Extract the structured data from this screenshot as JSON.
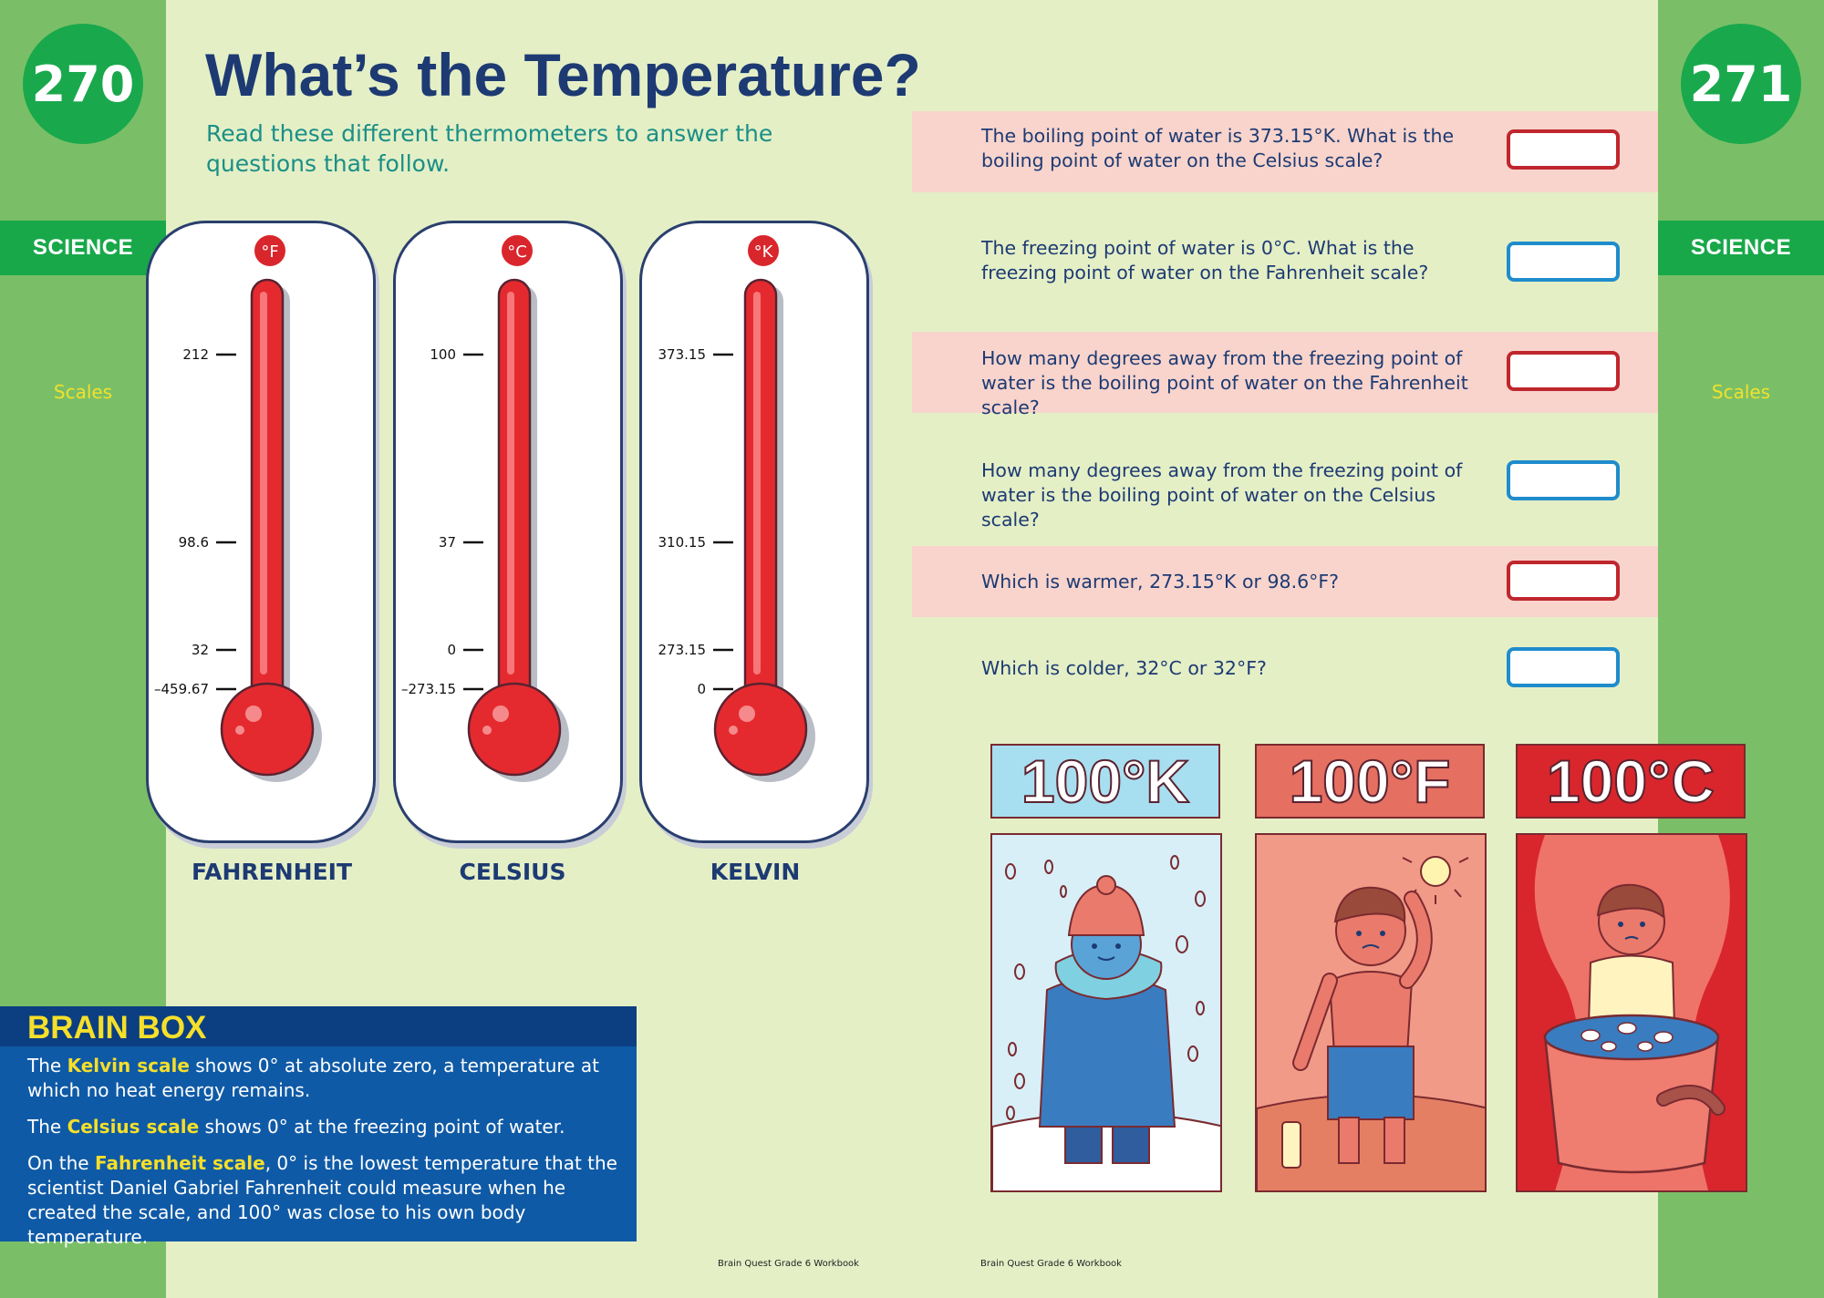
{
  "pages": {
    "left": {
      "number": "270",
      "subject": "SCIENCE",
      "topic": "Scales"
    },
    "right": {
      "number": "271",
      "subject": "SCIENCE",
      "topic": "Scales"
    }
  },
  "header": {
    "title": "What’s the Temperature?",
    "subtitle": "Read these different thermometers to answer the questions that follow."
  },
  "thermometers": [
    {
      "unit": "°F",
      "name": "FAHRENHEIT",
      "ticks": [
        "212",
        "98.6",
        "32",
        "–459.67"
      ]
    },
    {
      "unit": "°C",
      "name": "CELSIUS",
      "ticks": [
        "100",
        "37",
        "0",
        "–273.15"
      ]
    },
    {
      "unit": "°K",
      "name": "KELVIN",
      "ticks": [
        "373.15",
        "310.15",
        "273.15",
        "0"
      ]
    }
  ],
  "questions": [
    {
      "text": "The boiling point of water is 373.15°K. What is the boiling point of water on the Celsius scale?",
      "answer": ""
    },
    {
      "text": "The freezing point of water is 0°C. What is the freezing point of water on the Fahrenheit scale?",
      "answer": ""
    },
    {
      "text": "How many degrees away from the freezing point of water is the boiling point of water on the Fahrenheit scale?",
      "answer": ""
    },
    {
      "text": "How many degrees away from the freezing point of water is the boiling point of water on the Celsius scale?",
      "answer": ""
    },
    {
      "text": "Which is warmer, 273.15°K or 98.6°F?",
      "answer": ""
    },
    {
      "text": "Which is colder, 32°C or 32°F?",
      "answer": ""
    }
  ],
  "brain_box": {
    "title": "BRAIN BOX",
    "p1_pre": "The ",
    "p1_hl": "Kelvin scale",
    "p1_post": " shows 0° at absolute zero, a temperature at which no heat energy remains.",
    "p2_pre": "The ",
    "p2_hl": "Celsius scale",
    "p2_post": " shows 0° at the freezing point of water.",
    "p3_pre": "On the ",
    "p3_hl": "Fahrenheit scale",
    "p3_post": ", 0° is the lowest temperature that the scientist Daniel Gabriel Fahrenheit could measure when he created the scale, and 100° was close to his own body temperature."
  },
  "illustrations": [
    {
      "label": "100°K",
      "color": "#a8dff0",
      "scene": "cold-child"
    },
    {
      "label": "100°F",
      "color": "#e56f60",
      "scene": "hot-child"
    },
    {
      "label": "100°C",
      "color": "#d9262c",
      "scene": "boiling-pot"
    }
  ],
  "footer": {
    "left": "Brain Quest Grade 6 Workbook",
    "right": "Brain Quest Grade 6 Workbook"
  }
}
